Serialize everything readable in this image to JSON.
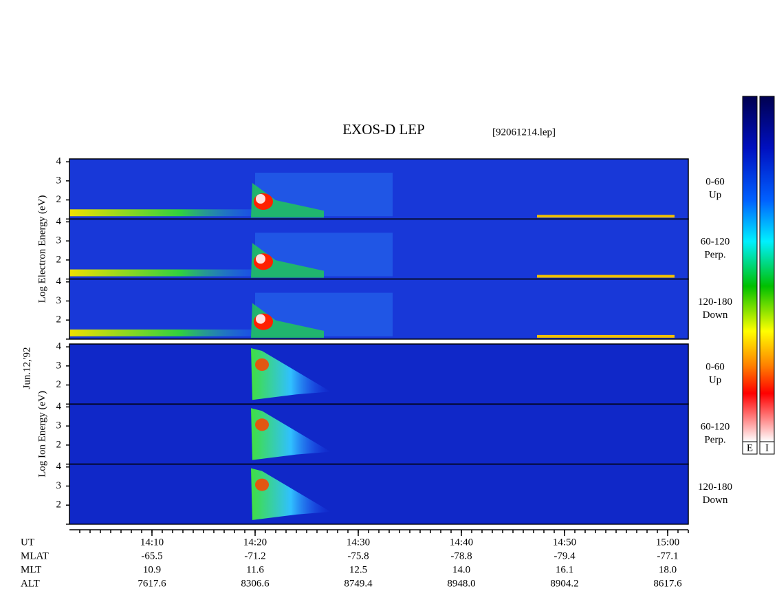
{
  "chart_data": {
    "type": "spectrogram",
    "title": "EXOS-D LEP",
    "subtitle": "[92061214.lep]",
    "date": "Jun.12,'92",
    "x_title": "UT",
    "xlim": [
      "14:02",
      "15:02"
    ],
    "xticks": [
      "14:10",
      "14:20",
      "14:30",
      "14:40",
      "14:50",
      "15:00"
    ],
    "ylim": [
      1,
      4.15
    ],
    "yticks": [
      2,
      3,
      4
    ],
    "groups": [
      {
        "ylabel": "Log Electron Energy (eV)",
        "panels": [
          {
            "label": "0-60",
            "sublabel": "Up"
          },
          {
            "label": "60-120",
            "sublabel": "Perp."
          },
          {
            "label": "120-180",
            "sublabel": "Down"
          }
        ]
      },
      {
        "ylabel": "Log Ion Energy (eV)",
        "panels": [
          {
            "label": "0-60",
            "sublabel": "Up"
          },
          {
            "label": "60-120",
            "sublabel": "Perp."
          },
          {
            "label": "120-180",
            "sublabel": "Down"
          }
        ]
      }
    ],
    "colorbars": [
      "E",
      "I"
    ],
    "ephemeris": [
      {
        "name": "MLAT",
        "values": [
          "-65.5",
          "-71.2",
          "-75.8",
          "-78.8",
          "-79.4",
          "-77.1"
        ]
      },
      {
        "name": "MLT",
        "values": [
          "10.9",
          "11.6",
          "12.5",
          "14.0",
          "16.1",
          "18.0"
        ]
      },
      {
        "name": "ALT",
        "values": [
          "7617.6",
          "8306.6",
          "8749.4",
          "8948.0",
          "8904.2",
          "8617.6"
        ]
      }
    ]
  }
}
